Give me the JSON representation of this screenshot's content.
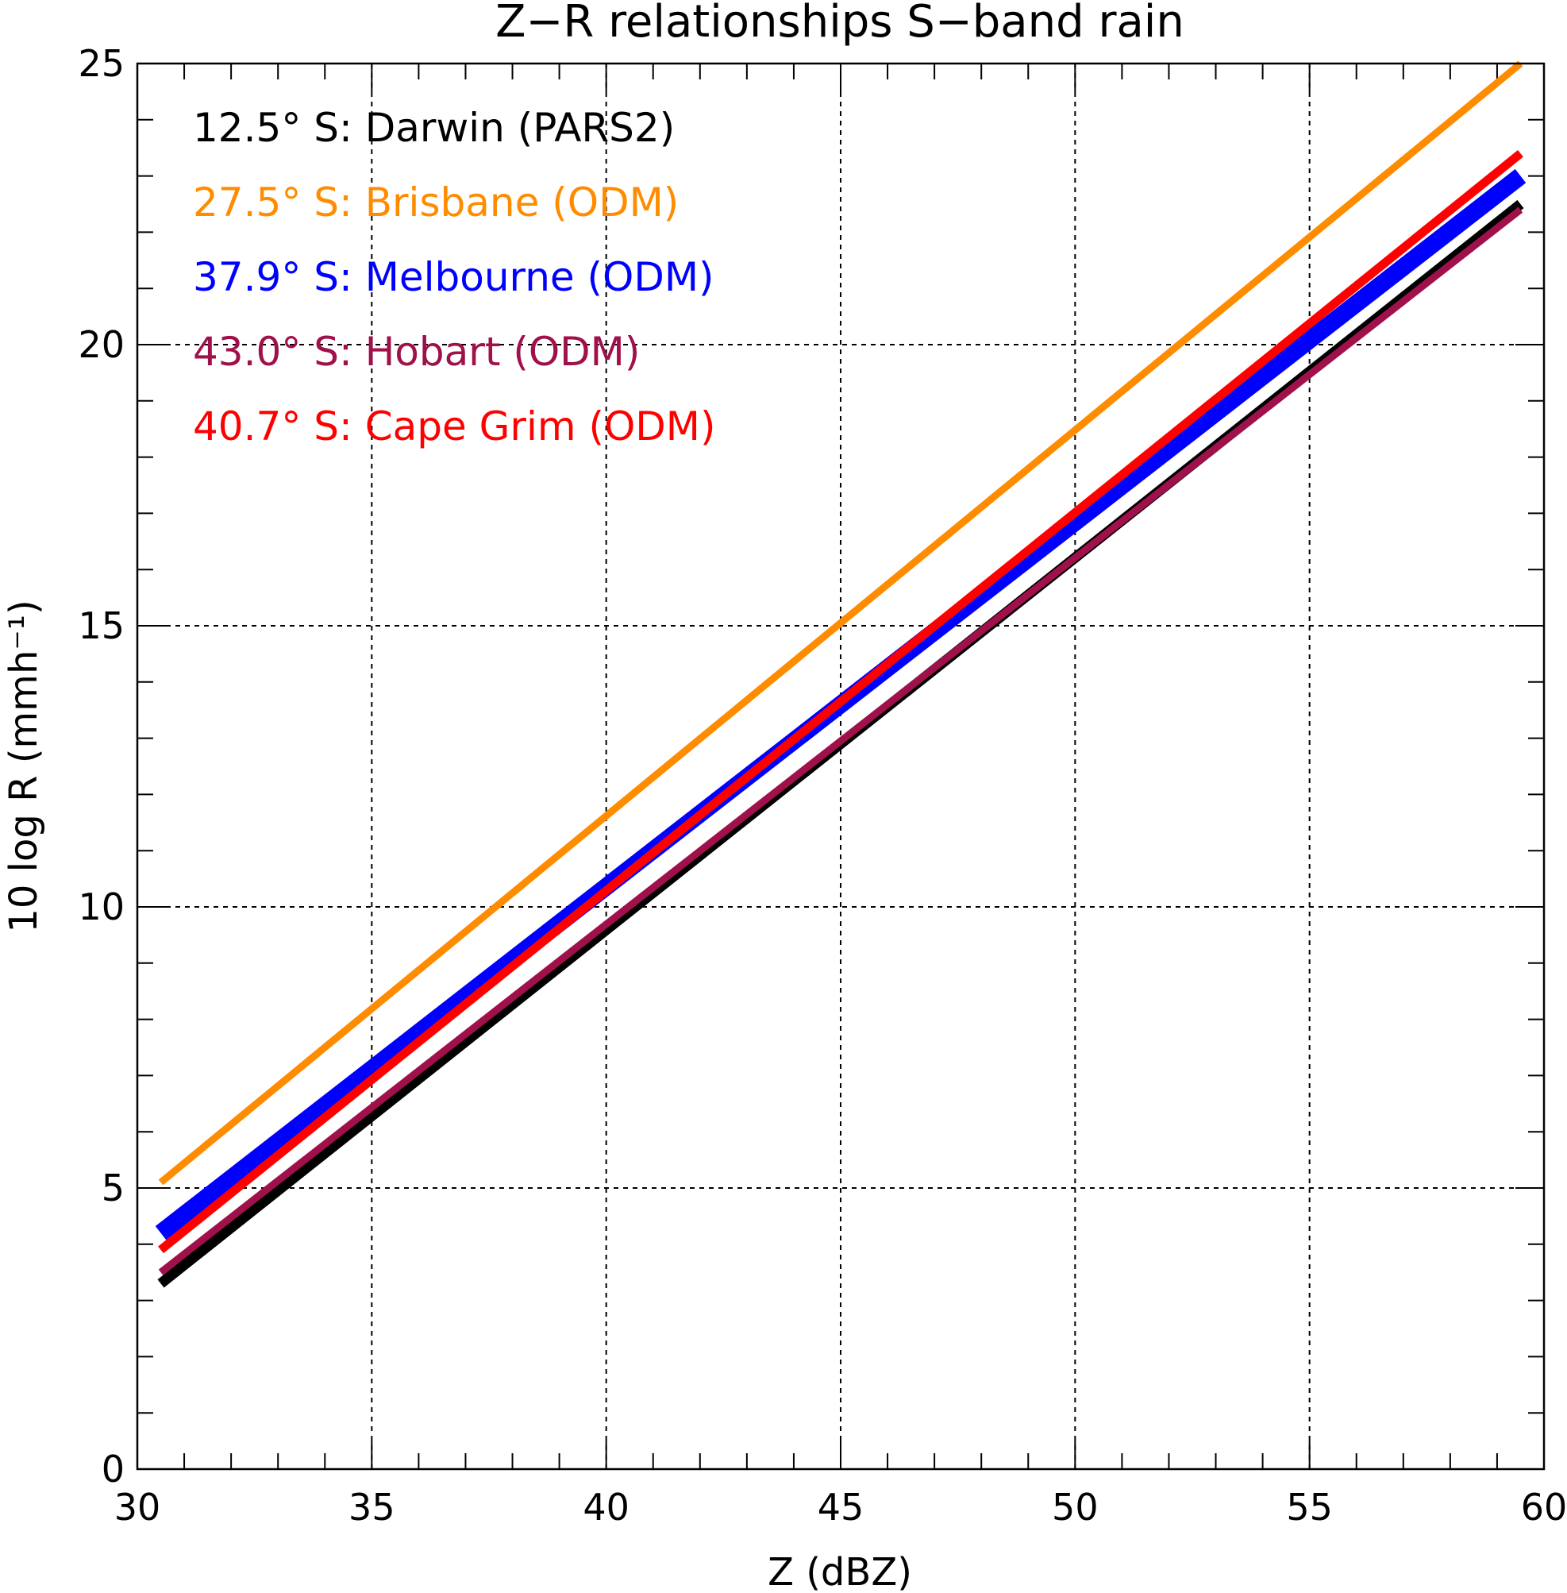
{
  "chart_data": {
    "type": "line",
    "title": "Z−R relationships S−band rain",
    "xlabel": "Z (dBZ)",
    "ylabel": "10 log R (mmh⁻¹)",
    "xlim": [
      30,
      60
    ],
    "ylim": [
      0,
      25
    ],
    "xticks": [
      30,
      35,
      40,
      45,
      50,
      55,
      60
    ],
    "yticks": [
      0,
      5,
      10,
      15,
      20,
      25
    ],
    "x_minor_step": 1,
    "y_minor_step": 1,
    "grid": true,
    "legend_position": "top-left",
    "series": [
      {
        "name": "12.5° S: Darwin (PARS2)",
        "color": "#000000",
        "x": [
          30.5,
          59.5
        ],
        "y": [
          3.3,
          22.5
        ]
      },
      {
        "name": "27.5° S: Brisbane (ODM)",
        "color": "#FF8C00",
        "x": [
          30.5,
          59.5
        ],
        "y": [
          5.1,
          25.0
        ]
      },
      {
        "name": "37.9° S: Melbourne (ODM)",
        "color": "#0000FF",
        "x": [
          30.5,
          59.5
        ],
        "y": [
          4.2,
          23.0
        ]
      },
      {
        "name": "43.0° S: Hobart (ODM)",
        "color": "#A0104A",
        "x": [
          30.5,
          59.5
        ],
        "y": [
          3.5,
          22.4
        ]
      },
      {
        "name": "40.7° S: Cape Grim (ODM)",
        "color": "#FF0000",
        "x": [
          30.5,
          59.5
        ],
        "y": [
          3.9,
          23.4
        ]
      }
    ]
  }
}
